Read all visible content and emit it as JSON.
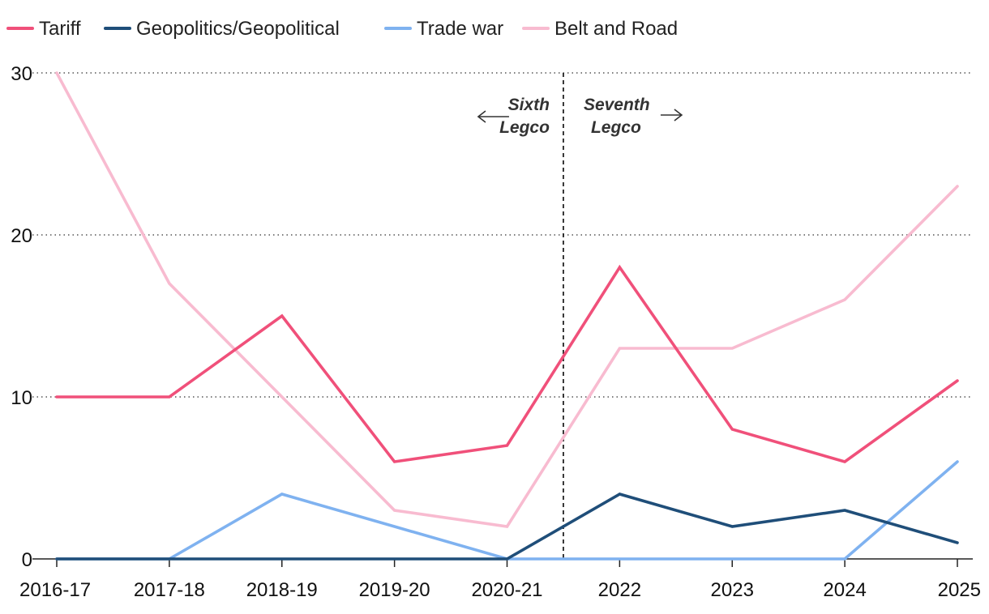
{
  "chart_data": {
    "type": "line",
    "title": "",
    "xlabel": "",
    "ylabel": "",
    "categories": [
      "2016-17",
      "2017-18",
      "2018-19",
      "2019-20",
      "2020-21",
      "2022",
      "2023",
      "2024",
      "2025"
    ],
    "ylim": [
      0,
      30
    ],
    "yticks": [
      0,
      10,
      20,
      30
    ],
    "grid": "horizontal dotted",
    "legend": "top-left",
    "series": [
      {
        "name": "Tariff",
        "color": "#F0507A",
        "values": [
          10,
          10,
          15,
          6,
          7,
          18,
          8,
          6,
          11
        ]
      },
      {
        "name": "Geopolitics/Geopolitical",
        "color": "#1F4E79",
        "values": [
          0,
          0,
          0,
          0,
          0,
          4,
          2,
          3,
          1
        ]
      },
      {
        "name": "Trade war",
        "color": "#7FB2F0",
        "values": [
          0,
          0,
          4,
          2,
          0,
          0,
          0,
          0,
          6
        ]
      },
      {
        "name": "Belt and Road",
        "color": "#F8BBD0",
        "values": [
          30,
          17,
          10,
          3,
          2,
          13,
          13,
          16,
          23
        ]
      }
    ],
    "divider": {
      "between": [
        "2020-21",
        "2022"
      ],
      "left_label": [
        "Sixth",
        "Legco"
      ],
      "right_label": [
        "Seventh",
        "Legco"
      ],
      "left_arrow": "←",
      "right_arrow": "→"
    }
  }
}
